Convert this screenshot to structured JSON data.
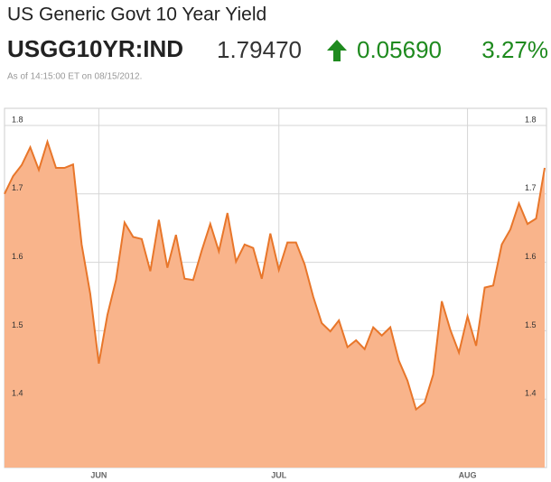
{
  "header": {
    "title": "US Generic Govt 10 Year Yield",
    "symbol": "USGG10YR:IND",
    "price": "1.79470",
    "change": "0.05690",
    "percent": "3.27%",
    "timestamp": "As of 14:15:00 ET on 08/15/2012."
  },
  "chart_data": {
    "type": "area",
    "categories": [
      null,
      null,
      null,
      null,
      null,
      null,
      null,
      null,
      null,
      null,
      null,
      "JUN",
      null,
      null,
      null,
      null,
      null,
      null,
      null,
      null,
      null,
      null,
      null,
      null,
      null,
      null,
      null,
      null,
      null,
      null,
      null,
      null,
      "JUL",
      null,
      null,
      null,
      null,
      null,
      null,
      null,
      null,
      null,
      null,
      null,
      null,
      null,
      null,
      null,
      null,
      null,
      null,
      null,
      null,
      null,
      "AUG",
      null,
      null,
      null,
      null,
      null,
      null,
      null,
      null,
      null
    ],
    "values": [
      1.7,
      1.726,
      1.742,
      1.768,
      1.735,
      1.776,
      1.738,
      1.738,
      1.743,
      1.626,
      1.554,
      1.452,
      1.523,
      1.574,
      1.658,
      1.637,
      1.634,
      1.587,
      1.662,
      1.592,
      1.64,
      1.576,
      1.574,
      1.617,
      1.656,
      1.616,
      1.672,
      1.601,
      1.626,
      1.621,
      1.576,
      1.642,
      1.589,
      1.629,
      1.629,
      1.597,
      1.55,
      1.511,
      1.499,
      1.515,
      1.476,
      1.486,
      1.473,
      1.505,
      1.493,
      1.505,
      1.456,
      1.427,
      1.385,
      1.395,
      1.436,
      1.543,
      1.501,
      1.468,
      1.521,
      1.478,
      1.563,
      1.566,
      1.626,
      1.648,
      1.686,
      1.656,
      1.664,
      1.738
    ],
    "color": "#e8762a",
    "fill_color": "#f9b48b",
    "ylim": [
      1.3,
      1.825
    ],
    "yticks": [
      1.4,
      1.5,
      1.6,
      1.7,
      1.8
    ],
    "grid": true
  }
}
